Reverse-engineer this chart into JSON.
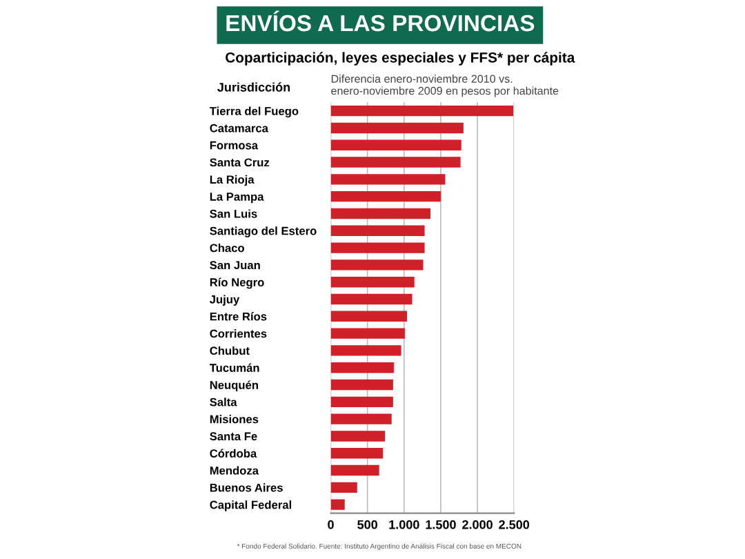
{
  "chart_data": {
    "type": "bar",
    "orientation": "horizontal",
    "title": "ENVÍOS A LAS PROVINCIAS",
    "subtitle": "Coparticipación, leyes especiales y FFS* per cápita",
    "ylabel": "Jurisdicción",
    "xlabel": "Diferencia enero-noviembre 2010 vs.\nenero-noviembre 2009 en pesos por habitante",
    "categories": [
      "Tierra del Fuego",
      "Catamarca",
      "Formosa",
      "Santa Cruz",
      "La Rioja",
      "La Pampa",
      "San Luis",
      "Santiago del Estero",
      "Chaco",
      "San Juan",
      "Río Negro",
      "Jujuy",
      "Entre Ríos",
      "Corrientes",
      "Chubut",
      "Tucumán",
      "Neuquén",
      "Salta",
      "Misiones",
      "Santa Fe",
      "Córdoba",
      "Mendoza",
      "Buenos Aires",
      "Capital Federal"
    ],
    "values": [
      2490,
      1810,
      1780,
      1770,
      1560,
      1500,
      1360,
      1280,
      1280,
      1260,
      1140,
      1110,
      1040,
      1010,
      960,
      860,
      850,
      850,
      830,
      740,
      710,
      660,
      360,
      190
    ],
    "color": "#d0202a",
    "xlim": [
      0,
      2500
    ],
    "xticks": [
      0,
      500,
      {
        "value": 1000,
        "label": "1.000"
      },
      {
        "value": 1500,
        "label": "1.500"
      },
      {
        "value": 2000,
        "label": "2.000"
      },
      {
        "value": 2500,
        "label": "2.500"
      }
    ],
    "grid": "x",
    "annotations": [
      "* Fondo Federal Solidario. Fuente: Instituto Argentino de Análisis Fiscal con base en MECON"
    ]
  }
}
